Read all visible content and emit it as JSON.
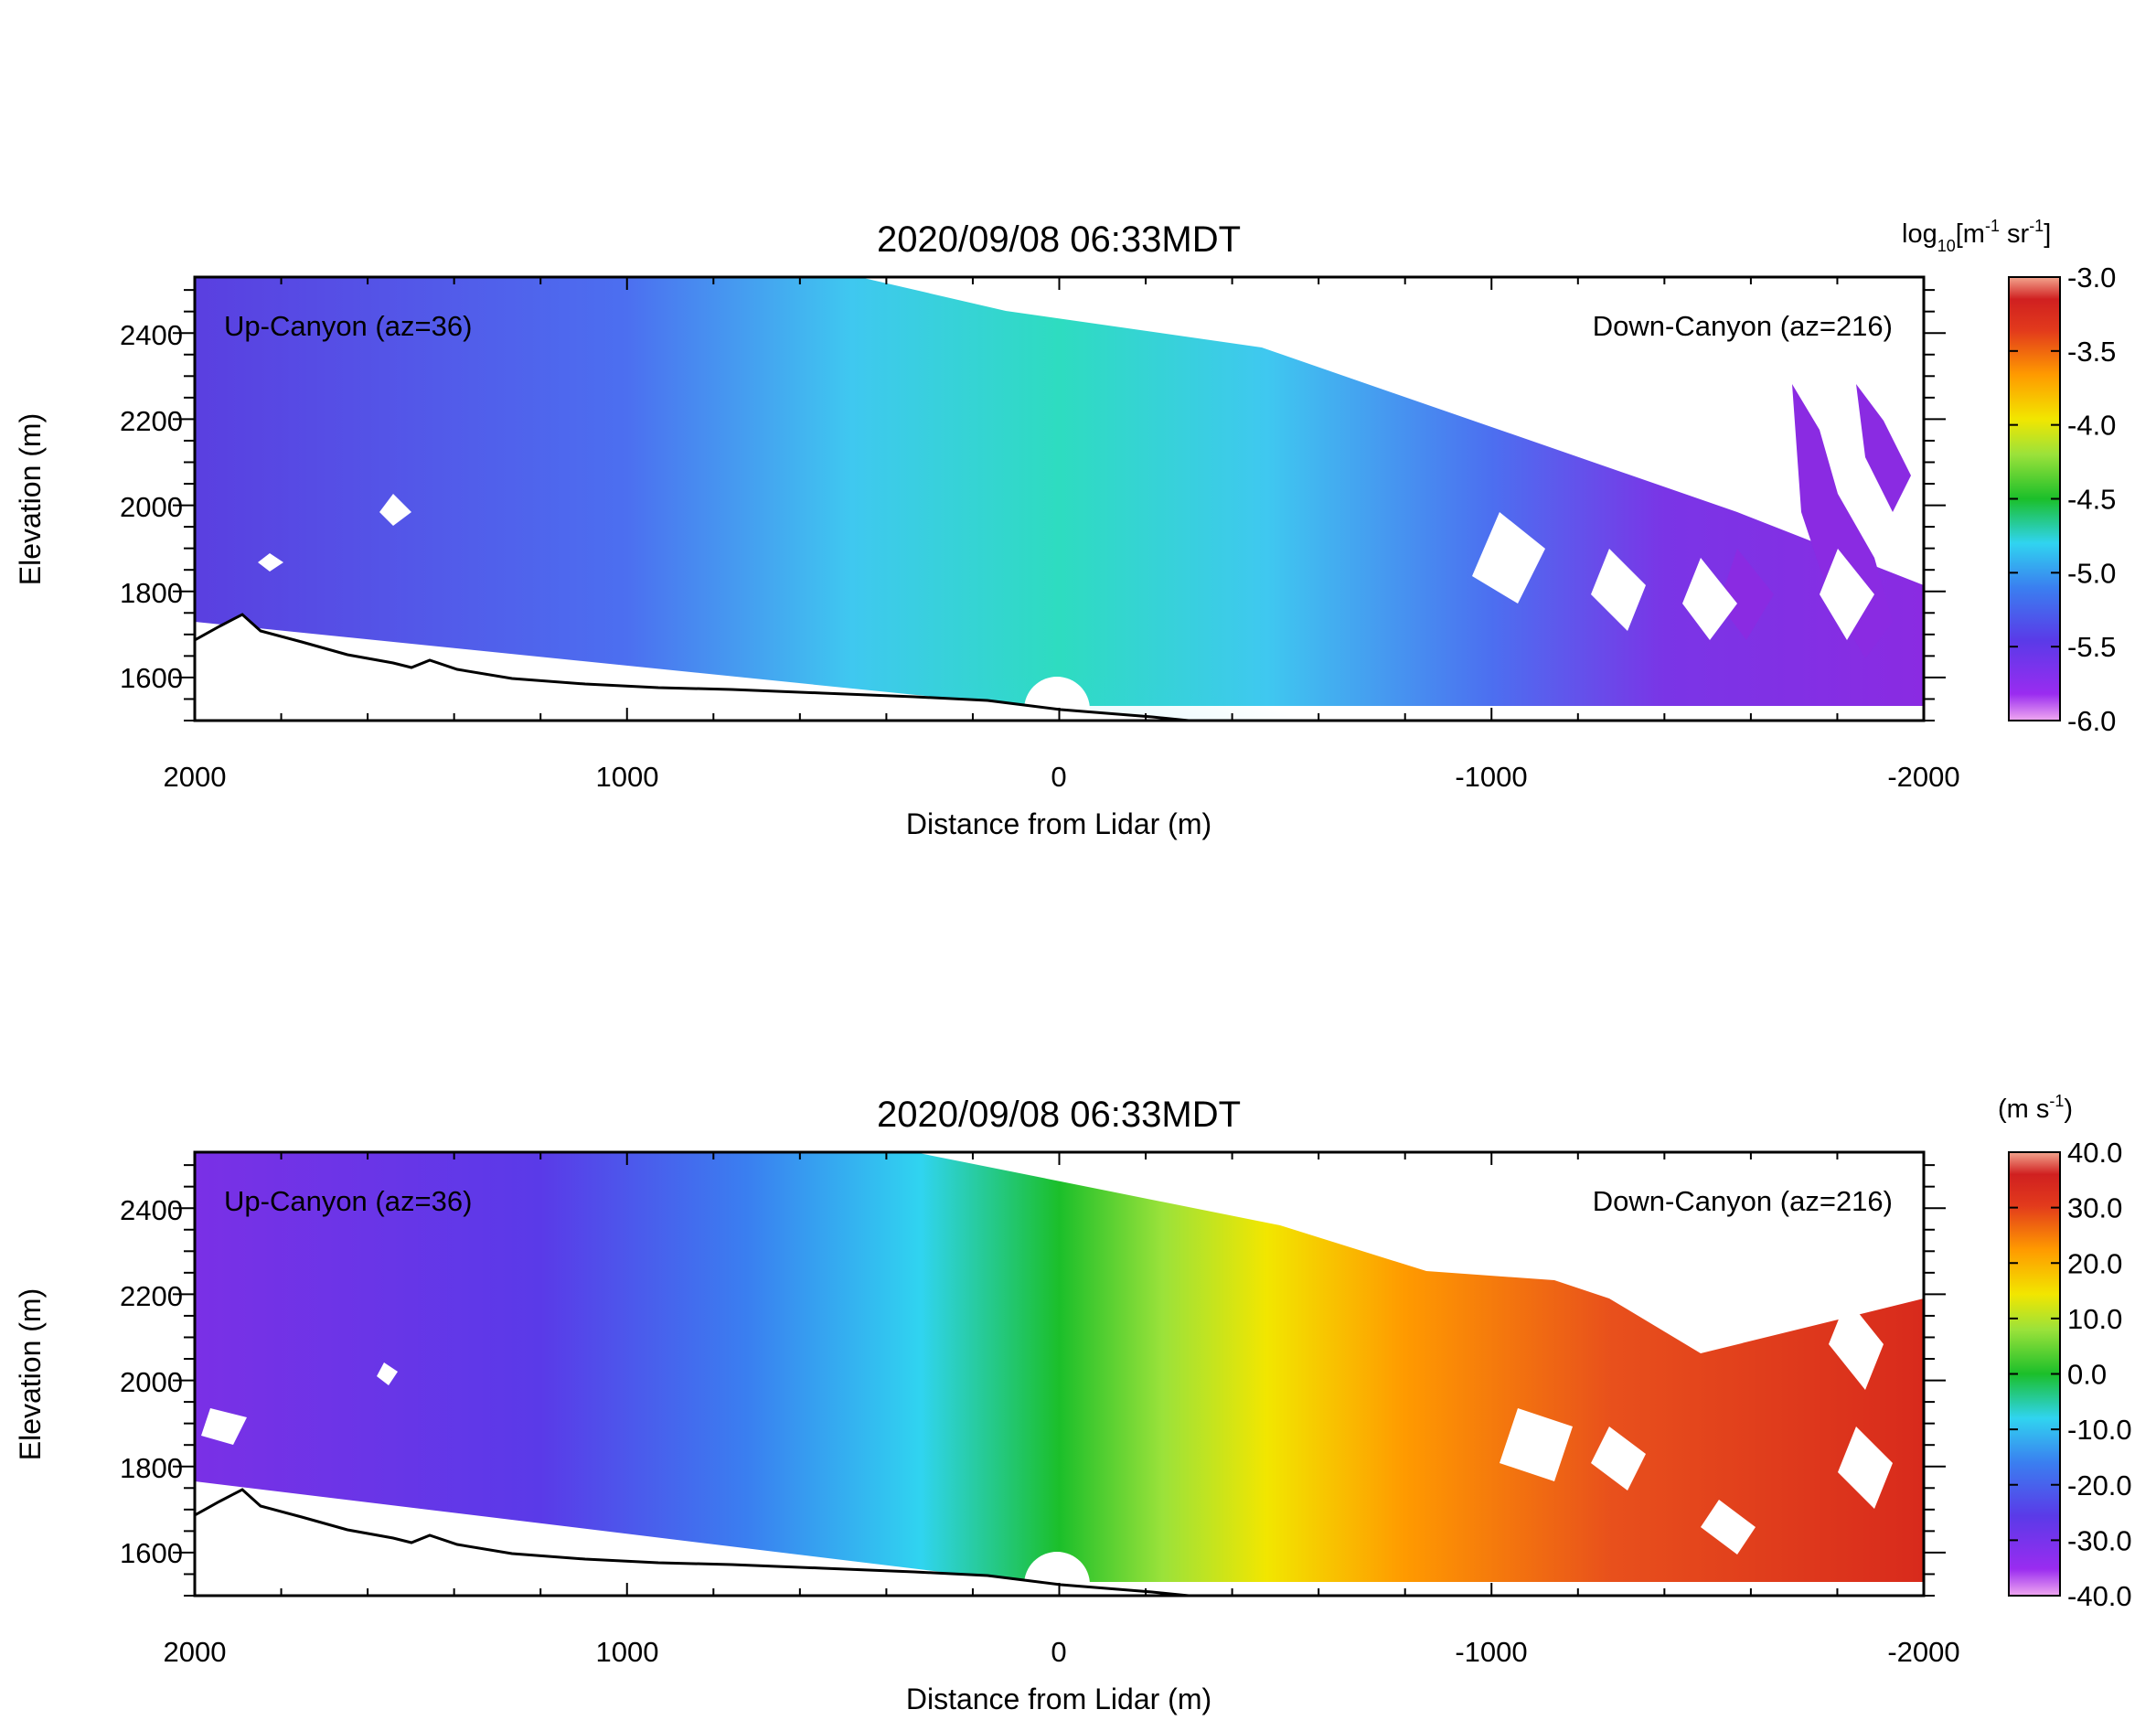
{
  "colors": {
    "background": "#ffffff",
    "colormap": [
      "#6a0dad",
      "#8a2be2",
      "#4b3cd6",
      "#3a7ff0",
      "#30d4f0",
      "#2ee0a0",
      "#1bbf2a",
      "#9be23a",
      "#f2e600",
      "#ff9a00",
      "#e23a1c",
      "#d02020",
      "#f39a8a"
    ]
  },
  "chart_data": [
    {
      "type": "heatmap",
      "title": "2020/09/08 06:33MDT",
      "xlabel": "Distance from Lidar (m)",
      "ylabel": "Elevation (m)",
      "xlim": [
        2000,
        -2000
      ],
      "ylim": [
        1500,
        2530
      ],
      "x_ticks": [
        "2000",
        "1000",
        "0",
        "-1000",
        "-2000"
      ],
      "y_ticks": [
        "1600",
        "1800",
        "2000",
        "2200",
        "2400"
      ],
      "annotations": {
        "left": "Up-Canyon (az=36)",
        "right": "Down-Canyon (az=216)"
      },
      "colorbar": {
        "label_main": "log",
        "label_sub": "10",
        "label_unit": "[m",
        "label_sup1": "-1",
        "label_mid": " sr",
        "label_sup2": "-1",
        "label_end": "]",
        "range": [
          -6.0,
          -3.0
        ],
        "ticks": [
          "-3.0",
          "-3.5",
          "-4.0",
          "-4.5",
          "-5.0",
          "-5.5",
          "-6.0"
        ]
      }
    },
    {
      "type": "heatmap",
      "title": "2020/09/08 06:33MDT",
      "xlabel": "Distance from Lidar (m)",
      "ylabel": "Elevation (m)",
      "xlim": [
        2000,
        -2000
      ],
      "ylim": [
        1500,
        2530
      ],
      "x_ticks": [
        "2000",
        "1000",
        "0",
        "-1000",
        "-2000"
      ],
      "y_ticks": [
        "1600",
        "1800",
        "2000",
        "2200",
        "2400"
      ],
      "annotations": {
        "left": "Up-Canyon (az=36)",
        "right": "Down-Canyon (az=216)"
      },
      "colorbar": {
        "label_main": "(m s",
        "label_sup1": "-1",
        "label_end": ")",
        "range": [
          -40.0,
          40.0
        ],
        "ticks": [
          "40.0",
          "30.0",
          "20.0",
          "10.0",
          "0.0",
          "-10.0",
          "-20.0",
          "-30.0",
          "-40.0"
        ]
      }
    }
  ]
}
